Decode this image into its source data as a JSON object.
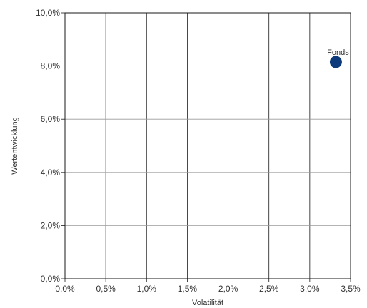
{
  "chart_data": {
    "type": "scatter",
    "title": "",
    "xlabel": "Volatilität",
    "ylabel": "Wertentwicklung",
    "xlim": [
      0,
      3.5
    ],
    "ylim": [
      0,
      10
    ],
    "x_ticks": [
      0,
      0.5,
      1.0,
      1.5,
      2.0,
      2.5,
      3.0,
      3.5
    ],
    "x_tick_labels": [
      "0,0%",
      "0,5%",
      "1,0%",
      "1,5%",
      "2,0%",
      "2,5%",
      "3,0%",
      "3,5%"
    ],
    "y_ticks": [
      0,
      2,
      4,
      6,
      8,
      10
    ],
    "y_tick_labels": [
      "0,0%",
      "2,0%",
      "4,0%",
      "6,0%",
      "8,0%",
      "10,0%"
    ],
    "grid": true,
    "points": [
      {
        "label": "Fonds",
        "x": 3.32,
        "y": 8.15,
        "color": "#0d3a7a"
      }
    ]
  }
}
